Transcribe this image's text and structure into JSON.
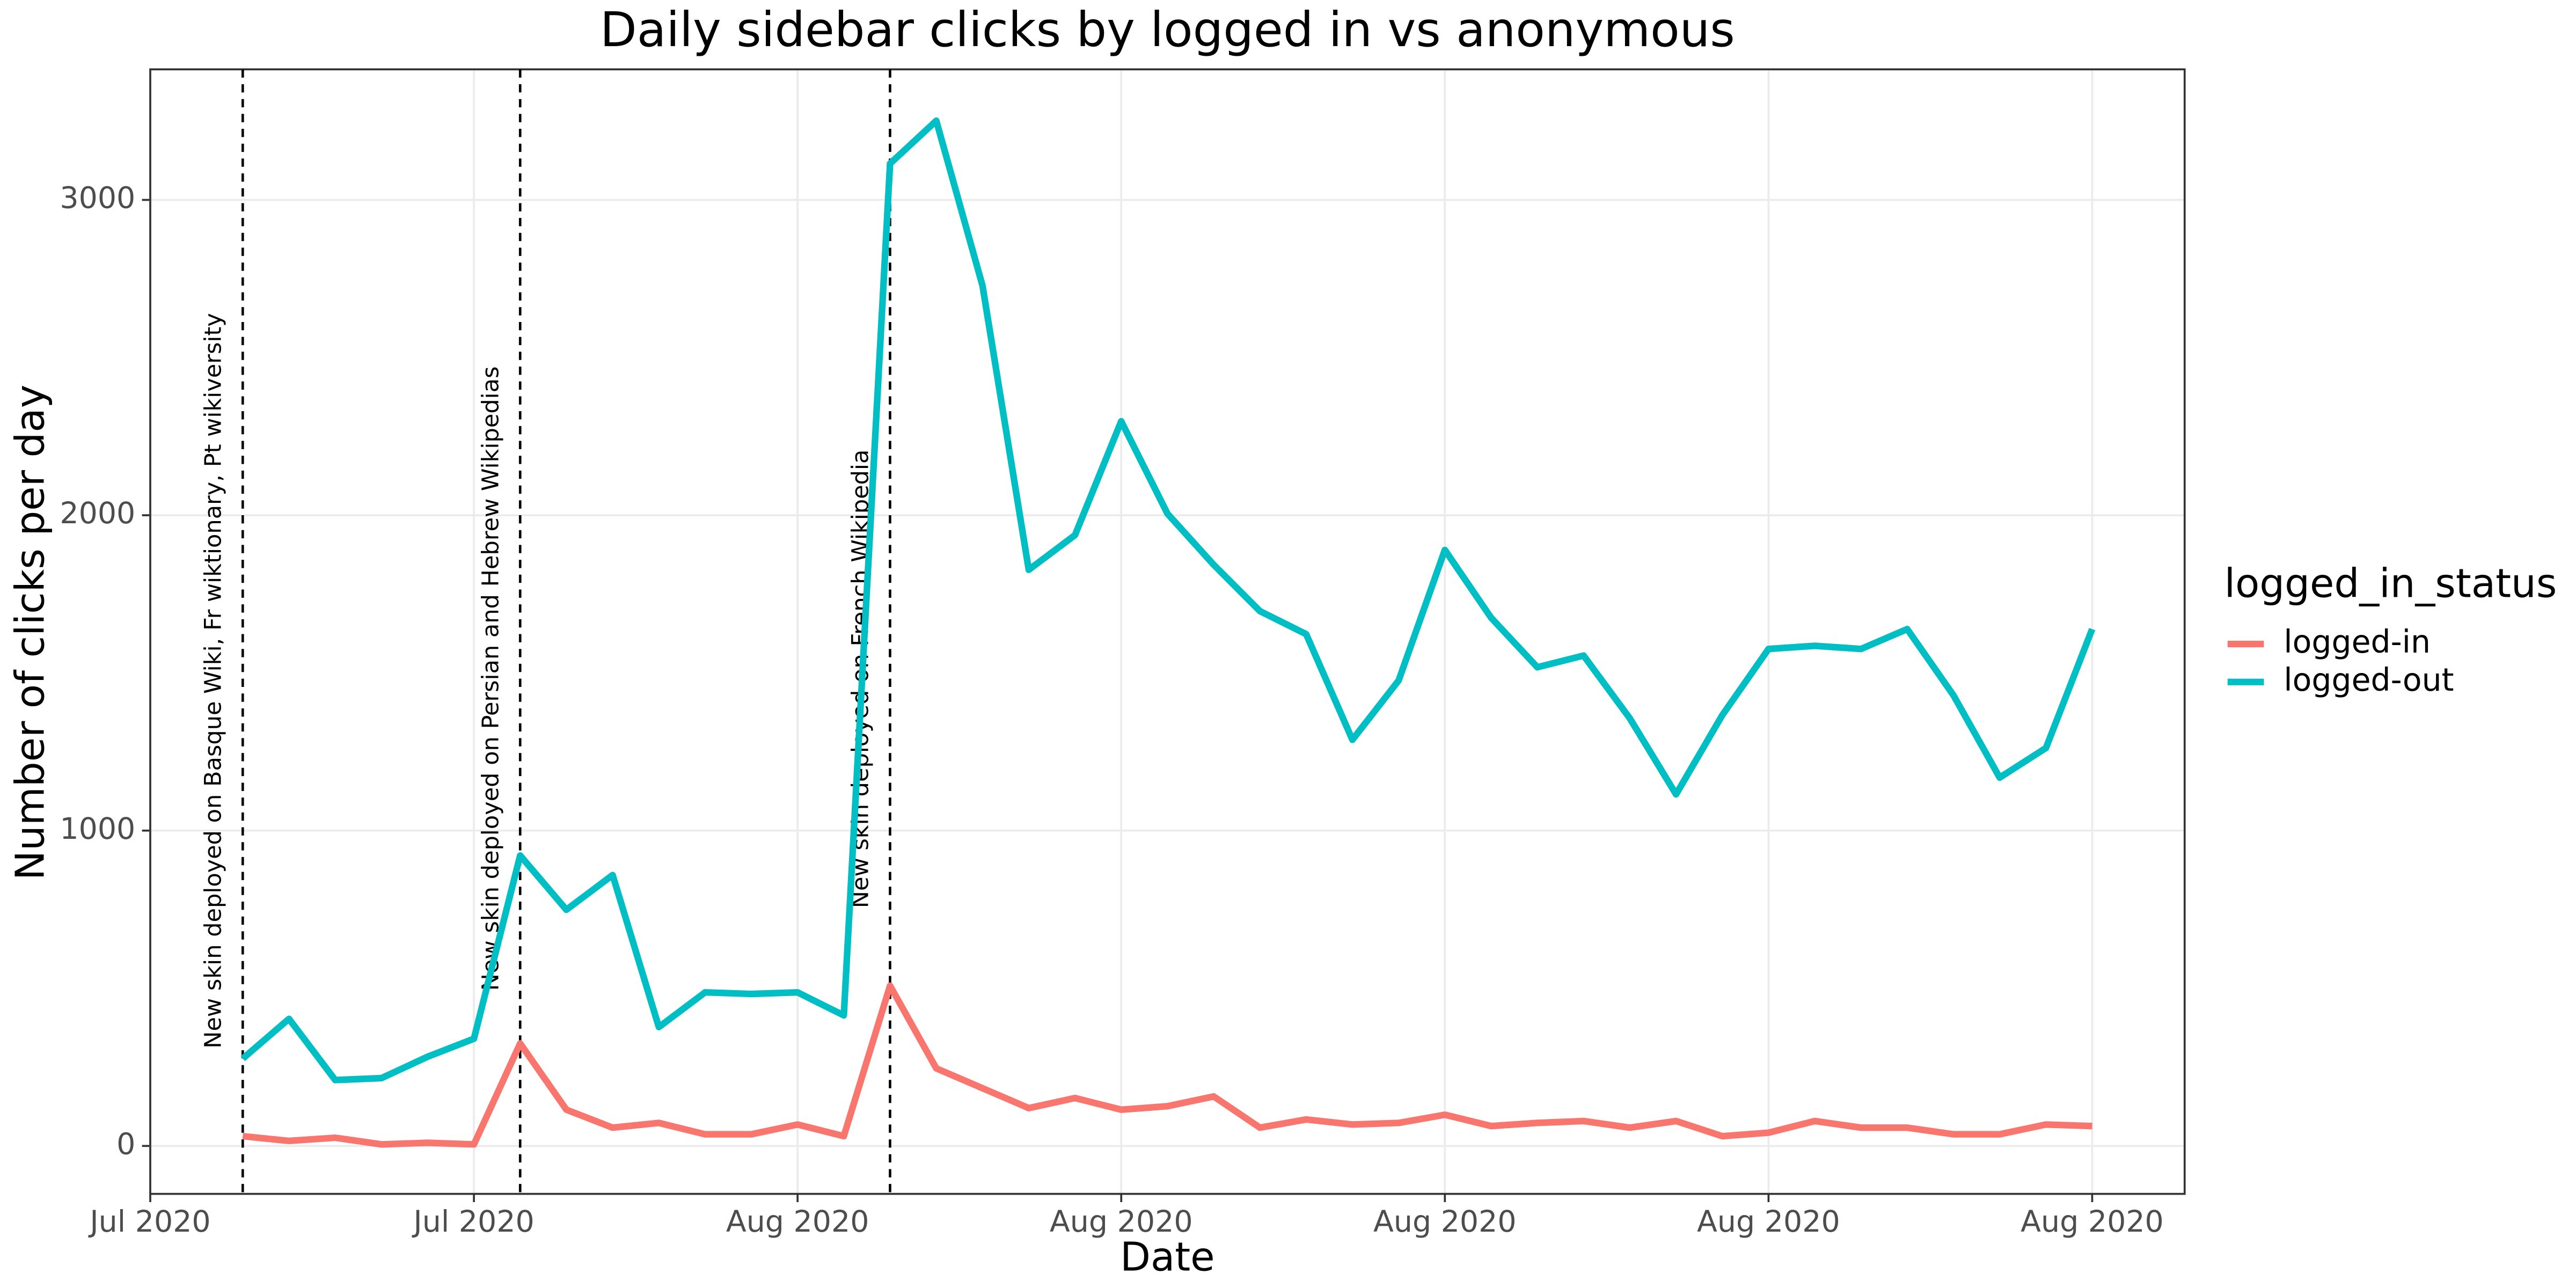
{
  "chart_data": {
    "type": "line",
    "title": "Daily sidebar clicks by logged in vs anonymous",
    "x_label": "Date",
    "y_label": "Number of clicks per day",
    "legend_title": "logged_in_status",
    "x": [
      0,
      1,
      2,
      3,
      4,
      5,
      6,
      7,
      8,
      9,
      10,
      11,
      12,
      13,
      14,
      15,
      16,
      17,
      18,
      19,
      20,
      21,
      22,
      23,
      24,
      25,
      26,
      27,
      28,
      29,
      30,
      31,
      32,
      33,
      34,
      35,
      36,
      37,
      38,
      39,
      40
    ],
    "series": [
      {
        "name": "logged-in",
        "color": "#F8766D",
        "values": [
          31,
          16,
          26,
          5,
          10,
          5,
          325,
          115,
          58,
          73,
          37,
          37,
          68,
          31,
          508,
          246,
          183,
          120,
          152,
          115,
          126,
          157,
          58,
          84,
          68,
          73,
          99,
          63,
          73,
          79,
          58,
          79,
          31,
          42,
          79,
          58,
          58,
          37,
          37,
          68,
          63
        ]
      },
      {
        "name": "logged-out",
        "color": "#00BFC4",
        "values": [
          277,
          403,
          209,
          215,
          283,
          340,
          921,
          749,
          859,
          377,
          487,
          482,
          487,
          414,
          3115,
          3251,
          2728,
          1827,
          1937,
          2298,
          2005,
          1843,
          1696,
          1623,
          1288,
          1476,
          1890,
          1675,
          1518,
          1555,
          1356,
          1115,
          1366,
          1576,
          1586,
          1576,
          1639,
          1429,
          1168,
          1262,
          1639
        ]
      }
    ],
    "annotations": [
      {
        "x": 0,
        "y": 309,
        "text": "New skin deployed on Basque Wiki, Fr wiktionary, Pt wikiversity"
      },
      {
        "x": 6,
        "y": 492,
        "text": "New skin deployed on Persian and Hebrew Wikipedias"
      },
      {
        "x": 14,
        "y": 754,
        "text": "New skin deployed on French Wikipedia"
      }
    ],
    "xlim": [
      -2,
      42
    ],
    "ylim": [
      -152,
      3414
    ],
    "xticks": [
      {
        "value": -2,
        "label": "Jul 2020"
      },
      {
        "value": 5,
        "label": "Jul 2020"
      },
      {
        "value": 12,
        "label": "Aug 2020"
      },
      {
        "value": 19,
        "label": "Aug 2020"
      },
      {
        "value": 26,
        "label": "Aug 2020"
      },
      {
        "value": 33,
        "label": "Aug 2020"
      },
      {
        "value": 40,
        "label": "Aug 2020"
      }
    ],
    "yticks": [
      0,
      1000,
      2000,
      3000
    ],
    "grid": true,
    "legend_position": "right"
  }
}
